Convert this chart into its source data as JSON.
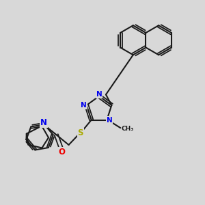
{
  "background_color": "#d8d8d8",
  "bond_color": "#1a1a1a",
  "nitrogen_color": "#0000ee",
  "oxygen_color": "#ee0000",
  "sulfur_color": "#aaaa00",
  "figsize": [
    3.0,
    3.0
  ],
  "dpi": 100,
  "xlim": [
    0,
    10
  ],
  "ylim": [
    0,
    10
  ]
}
